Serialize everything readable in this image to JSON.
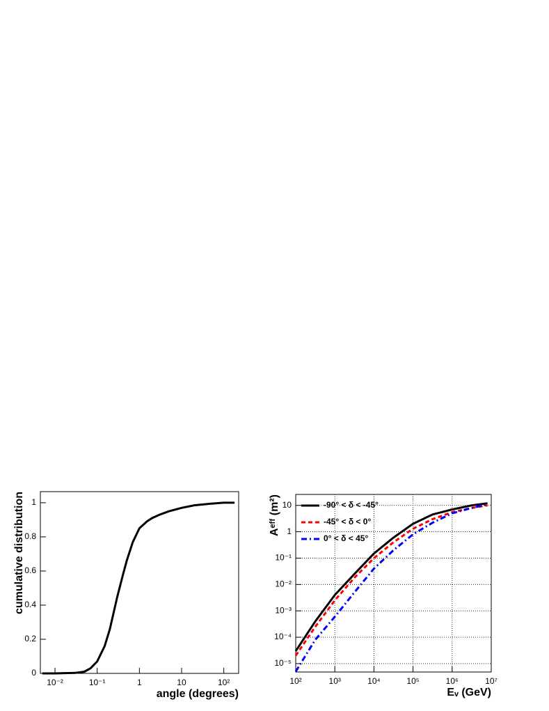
{
  "chart_data": [
    {
      "type": "line",
      "xlabel": "angle (degrees)",
      "ylabel": "cumulative distribution",
      "xscale": "log",
      "grid": false,
      "xlim": [
        0.0045,
        225
      ],
      "ylim": [
        0,
        1.065
      ],
      "xticks": [
        {
          "value": 0.01,
          "label": "10⁻²"
        },
        {
          "value": 0.1,
          "label": "10⁻¹"
        },
        1,
        10,
        {
          "value": 100,
          "label": "10²"
        }
      ],
      "yticks": [
        0,
        0.2,
        0.4,
        0.6,
        0.8,
        1
      ],
      "x": [
        0.005,
        0.01,
        0.03,
        0.05,
        0.07,
        0.1,
        0.15,
        0.2,
        0.3,
        0.4,
        0.5,
        0.7,
        1,
        1.5,
        2,
        3,
        5,
        10,
        20,
        50,
        100,
        180
      ],
      "series": [
        {
          "color": "#000000",
          "style": "solid",
          "values": [
            0,
            0,
            0.003,
            0.01,
            0.03,
            0.07,
            0.16,
            0.26,
            0.45,
            0.57,
            0.66,
            0.77,
            0.85,
            0.89,
            0.91,
            0.93,
            0.95,
            0.97,
            0.985,
            0.995,
            1.0,
            1.0
          ]
        }
      ]
    },
    {
      "type": "line",
      "xlabel": "Eᵥ (GeV)",
      "ylabel": "Aᵉᶠᶠ (m²)",
      "xscale": "log",
      "yscale": "log",
      "grid": true,
      "legend": "upper left",
      "xlim": [
        100,
        10000000
      ],
      "ylim": [
        4.8e-06,
        26
      ],
      "xticks": [
        {
          "value": 100,
          "label": "10²"
        },
        {
          "value": 1000,
          "label": "10³"
        },
        {
          "value": 10000,
          "label": "10⁴"
        },
        {
          "value": 100000,
          "label": "10⁵"
        },
        {
          "value": 1000000,
          "label": "10⁶"
        },
        {
          "value": 10000000,
          "label": "10⁷"
        }
      ],
      "yticks": [
        {
          "value": 1e-05,
          "label": "10⁻⁵"
        },
        {
          "value": 0.0001,
          "label": "10⁻⁴"
        },
        {
          "value": 0.001,
          "label": "10⁻³"
        },
        {
          "value": 0.01,
          "label": "10⁻²"
        },
        {
          "value": 0.1,
          "label": "10⁻¹"
        },
        1,
        10
      ],
      "x": [
        100,
        316,
        1000,
        3162,
        10000,
        31620,
        100000,
        316200,
        1000000,
        3162000,
        8000000
      ],
      "series": [
        {
          "name": "-90° < δ < -45°",
          "color": "#000000",
          "style": "solid",
          "values": [
            3e-05,
            0.0004,
            0.004,
            0.025,
            0.15,
            0.6,
            2,
            4.5,
            7,
            10,
            12
          ]
        },
        {
          "name": "-45° < δ < 0°",
          "color": "#ff0000",
          "style": "dashed",
          "values": [
            2e-05,
            0.00025,
            0.0025,
            0.018,
            0.1,
            0.4,
            1.3,
            3,
            5.5,
            8,
            10
          ]
        },
        {
          "name": "0° < δ < 45°",
          "color": "#0000ff",
          "style": "dashdot",
          "values": [
            5e-06,
            8e-05,
            0.0006,
            0.005,
            0.04,
            0.2,
            0.8,
            2.2,
            5,
            8,
            11
          ]
        }
      ]
    }
  ]
}
